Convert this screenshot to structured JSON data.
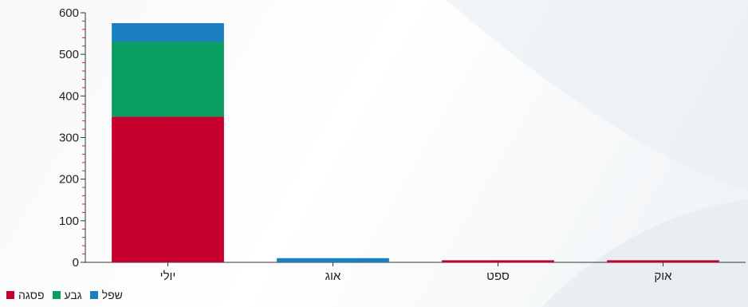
{
  "chart_data": {
    "type": "bar",
    "stacked": true,
    "categories": [
      "יולי",
      "אוג",
      "ספט",
      "אוק"
    ],
    "series": [
      {
        "name": "פסגה",
        "color": "#c8002e",
        "values": [
          350,
          0,
          5,
          5
        ]
      },
      {
        "name": "גבע",
        "color": "#0a9e63",
        "values": [
          180,
          0,
          0,
          0
        ]
      },
      {
        "name": "שפל",
        "color": "#1a7fc0",
        "values": [
          45,
          10,
          0,
          0
        ]
      }
    ],
    "yticks": [
      0,
      100,
      200,
      300,
      400,
      500,
      600
    ],
    "ylim": [
      0,
      600
    ],
    "grid": false,
    "legend_position": "bottom-left"
  }
}
